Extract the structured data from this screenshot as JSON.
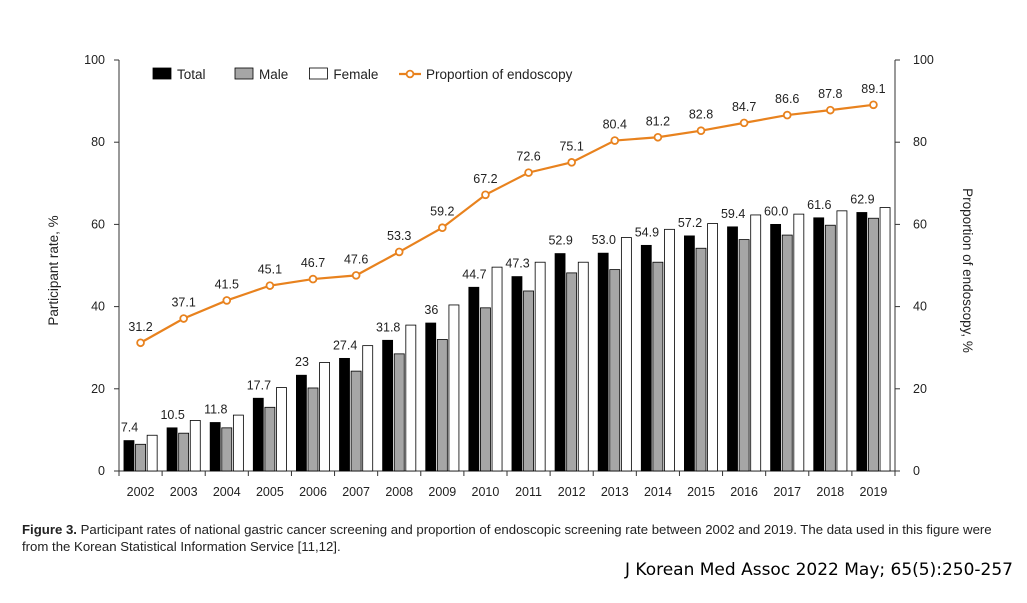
{
  "chart_data": {
    "type": "bar",
    "categories": [
      "2002",
      "2003",
      "2004",
      "2005",
      "2006",
      "2007",
      "2008",
      "2009",
      "2010",
      "2011",
      "2012",
      "2013",
      "2014",
      "2015",
      "2016",
      "2017",
      "2018",
      "2019"
    ],
    "series": [
      {
        "name": "Total",
        "kind": "bar",
        "color": "#000000",
        "values": [
          7.4,
          10.5,
          11.8,
          17.7,
          23.3,
          27.4,
          31.8,
          36.0,
          44.7,
          47.3,
          52.9,
          53.0,
          54.9,
          57.2,
          59.4,
          60.0,
          61.6,
          62.9
        ],
        "labels": [
          "7.4",
          "10.5",
          "11.8",
          "17.7",
          "23",
          "27.4",
          "31.8",
          "36",
          "44.7",
          "47.3",
          "52.9",
          "53.0",
          "54.9",
          "57.2",
          "59.4",
          "60.0",
          "61.6",
          "62.9"
        ]
      },
      {
        "name": "Male",
        "kind": "bar",
        "color": "#a6a6a6",
        "values": [
          6.5,
          9.2,
          10.5,
          15.5,
          20.2,
          24.3,
          28.5,
          32.0,
          39.7,
          43.8,
          48.2,
          49.0,
          50.8,
          54.2,
          56.3,
          57.4,
          59.8,
          61.5
        ]
      },
      {
        "name": "Female",
        "kind": "bar",
        "color": "#ffffff",
        "values": [
          8.7,
          12.3,
          13.6,
          20.3,
          26.4,
          30.5,
          35.5,
          40.4,
          49.6,
          50.8,
          50.8,
          56.8,
          58.8,
          60.2,
          62.3,
          62.5,
          63.3,
          64.1
        ]
      },
      {
        "name": "Proportion of endoscopy",
        "kind": "line",
        "axis": "right",
        "color": "#e8821e",
        "values": [
          31.2,
          37.1,
          41.5,
          45.1,
          46.7,
          47.6,
          53.3,
          59.2,
          67.2,
          72.6,
          75.1,
          80.4,
          81.2,
          82.8,
          84.7,
          86.6,
          87.8,
          89.1
        ],
        "labels": [
          "31.2",
          "37.1",
          "41.5",
          "45.1",
          "46.7",
          "47.6",
          "53.3",
          "59.2",
          "67.2",
          "72.6",
          "75.1",
          "80.4",
          "81.2",
          "82.8",
          "84.7",
          "86.6",
          "87.8",
          "89.1"
        ]
      }
    ],
    "ylabel": "Participant rate, %",
    "y2label": "Proportion of endoscopy, %",
    "ylim": [
      0,
      100
    ],
    "y2lim": [
      0,
      100
    ],
    "yticks": [
      "0",
      "20",
      "40",
      "60",
      "80",
      "100"
    ],
    "y2ticks": [
      "0",
      "20",
      "40",
      "60",
      "80",
      "100"
    ],
    "legend_position": "top-left",
    "grid": false
  },
  "caption": {
    "label": "Figure 3.",
    "text": " Participant rates of national gastric cancer screening and proportion of endoscopic screening rate between 2002 and 2019. The data used in this figure were from the Korean Statistical Information Service [11,12]."
  },
  "citation": "J Korean Med Assoc 2022 May; 65(5):250-257"
}
